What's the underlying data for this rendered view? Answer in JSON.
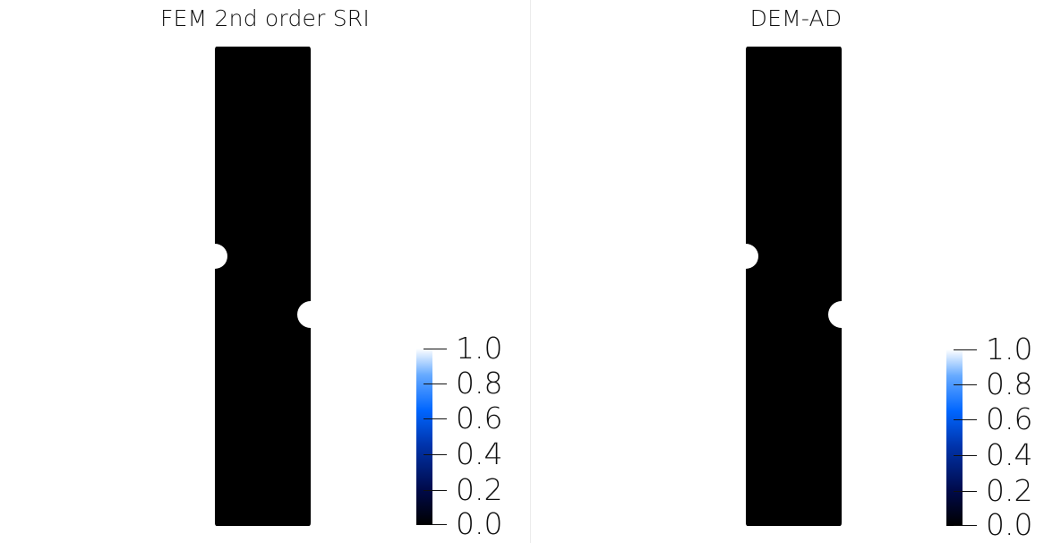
{
  "panels": [
    {
      "title": "FEM 2nd order SRI",
      "colorbar": {
        "ticks": [
          "1.0",
          "0.8",
          "0.6",
          "0.4",
          "0.2",
          "0.0"
        ],
        "colors": [
          "#000000",
          "#000a4a",
          "#0033aa",
          "#0066ff",
          "#66aaff",
          "#ffffff"
        ]
      },
      "field_value": 0.0
    },
    {
      "title": "DEM-AD",
      "colorbar": {
        "ticks": [
          "1.0",
          "0.8",
          "0.6",
          "0.4",
          "0.2",
          "0.0"
        ],
        "colors": [
          "#000000",
          "#000a4a",
          "#0033aa",
          "#0066ff",
          "#66aaff",
          "#ffffff"
        ]
      },
      "field_value": 0.0
    }
  ]
}
